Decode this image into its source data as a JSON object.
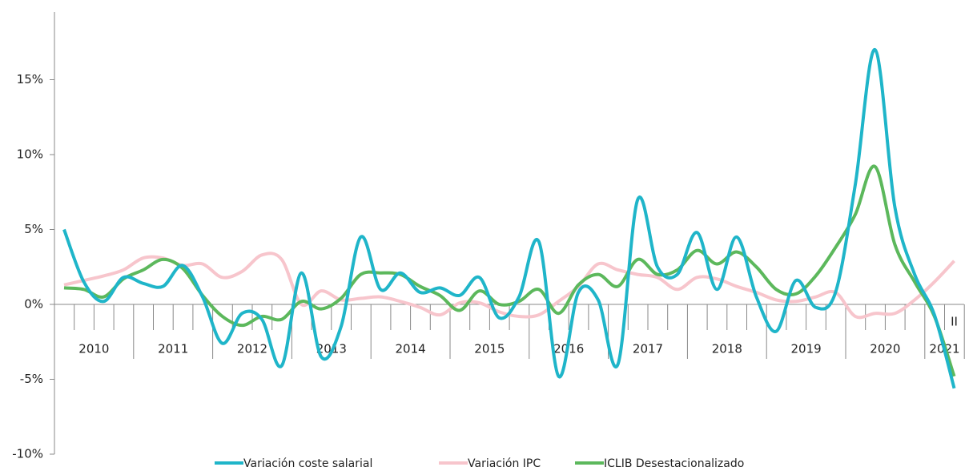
{
  "chart_data": {
    "type": "line",
    "categories": [
      null,
      null,
      null,
      null,
      null,
      null,
      null,
      null,
      null,
      null,
      null,
      null,
      null,
      null,
      null,
      null,
      null,
      null,
      null,
      null,
      null,
      null,
      null,
      null,
      null,
      null,
      null,
      null,
      null,
      null,
      null,
      null,
      null,
      null,
      null,
      null,
      null,
      null,
      null,
      null,
      null,
      null,
      null,
      null,
      null,
      "II"
    ],
    "year_labels": [
      "2010",
      "2011",
      "2012",
      "2013",
      "2014",
      "2015",
      "2016",
      "2017",
      "2018",
      "2019",
      "2020",
      "2021"
    ],
    "series": [
      {
        "name": "Variación coste salarial",
        "color": "#1fb5c9",
        "values": [
          5.0,
          1.5,
          0.2,
          1.8,
          1.4,
          1.2,
          2.6,
          0.5,
          -2.6,
          -0.6,
          -1.0,
          -4.1,
          2.1,
          -3.5,
          -1.5,
          4.5,
          1.0,
          2.1,
          0.8,
          1.1,
          0.6,
          1.8,
          -0.9,
          0.5,
          4.2,
          -4.8,
          0.8,
          0.3,
          -4.0,
          7.0,
          2.5,
          2.0,
          4.8,
          1.0,
          4.5,
          0.5,
          -1.8,
          1.6,
          -0.2,
          0.8,
          8.0,
          17.0,
          6.5,
          2.0,
          -0.7,
          -5.6
        ]
      },
      {
        "name": "Variación IPC",
        "color": "#f7c5cc",
        "values": [
          1.3,
          1.6,
          1.9,
          2.3,
          3.1,
          3.1,
          2.6,
          2.7,
          1.8,
          2.2,
          3.3,
          3.0,
          0.0,
          0.9,
          0.3,
          0.4,
          0.5,
          0.2,
          -0.2,
          -0.7,
          0.1,
          0.1,
          -0.5,
          -0.8,
          -0.7,
          0.2,
          1.2,
          2.7,
          2.3,
          2.0,
          1.8,
          1.0,
          1.8,
          1.7,
          1.2,
          0.8,
          0.3,
          0.2,
          0.5,
          0.8,
          -0.8,
          -0.6,
          -0.6,
          0.3,
          1.5,
          2.9
        ]
      },
      {
        "name": "ICLIB Desestacionalizado",
        "color": "#5cb85c",
        "values": [
          1.1,
          1.0,
          0.5,
          1.7,
          2.3,
          3.0,
          2.4,
          0.6,
          -0.8,
          -1.4,
          -0.8,
          -1.0,
          0.2,
          -0.3,
          0.4,
          2.0,
          2.1,
          2.0,
          1.2,
          0.6,
          -0.4,
          0.9,
          0.0,
          0.2,
          1.0,
          -0.6,
          1.3,
          2.0,
          1.2,
          3.0,
          2.0,
          2.3,
          3.6,
          2.7,
          3.5,
          2.5,
          1.0,
          0.7,
          1.9,
          3.8,
          6.0,
          9.2,
          4.0,
          1.5,
          -0.8,
          -4.8
        ]
      }
    ],
    "ylim": [
      -10,
      20
    ],
    "yticks": [
      {
        "value": -10,
        "label": "-10%"
      },
      {
        "value": -5,
        "label": "-5%"
      },
      {
        "value": 0,
        "label": "0%"
      },
      {
        "value": 5,
        "label": "5%"
      },
      {
        "value": 10,
        "label": "10%"
      },
      {
        "value": 15,
        "label": "15%"
      }
    ],
    "legend": "bottom"
  }
}
